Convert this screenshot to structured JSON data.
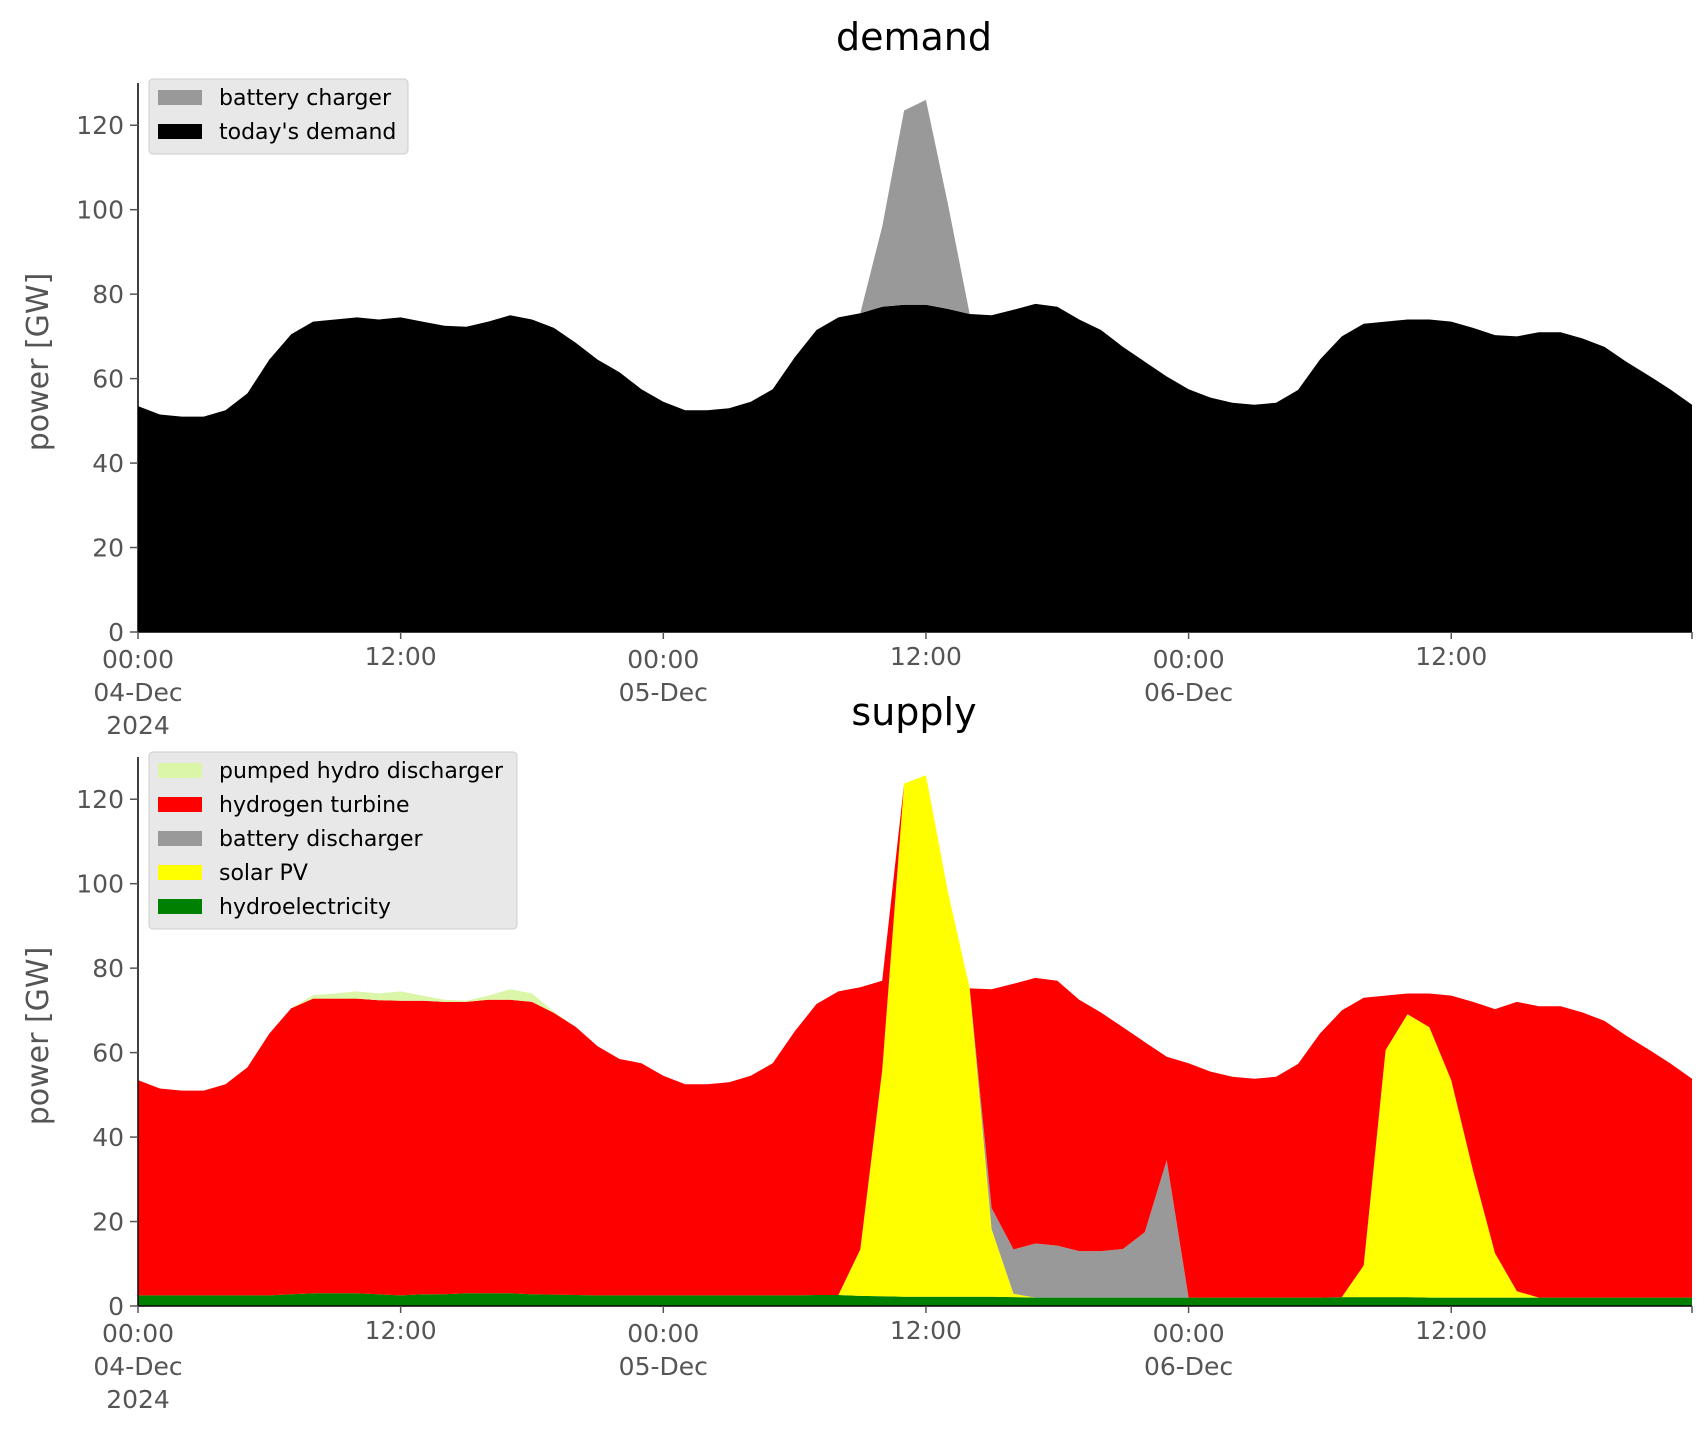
{
  "chart_data": [
    {
      "type": "area",
      "stacked": true,
      "title": "demand",
      "xlabel": "",
      "ylabel": "power [GW]",
      "ylim": [
        0,
        130
      ],
      "yticks": [
        0,
        20,
        40,
        60,
        80,
        100,
        120
      ],
      "grid": false,
      "legend_position": "top-left",
      "x_start": "2024-12-04 00:00",
      "x_end": "2024-12-06 23:00",
      "x_ticks": [
        {
          "x": "2024-12-04 00:00",
          "lines": [
            "00:00",
            "04-Dec",
            "2024"
          ]
        },
        {
          "x": "2024-12-04 12:00",
          "lines": [
            "12:00"
          ]
        },
        {
          "x": "2024-12-05 00:00",
          "lines": [
            "00:00",
            "05-Dec"
          ]
        },
        {
          "x": "2024-12-05 12:00",
          "lines": [
            "12:00"
          ]
        },
        {
          "x": "2024-12-06 00:00",
          "lines": [
            "00:00",
            "06-Dec"
          ]
        },
        {
          "x": "2024-12-06 12:00",
          "lines": [
            "12:00"
          ]
        },
        {
          "x": "2024-12-06 23:00",
          "lines": []
        }
      ],
      "x": [
        "2024-12-04 00:00",
        "2024-12-04 01:00",
        "2024-12-04 02:00",
        "2024-12-04 03:00",
        "2024-12-04 04:00",
        "2024-12-04 05:00",
        "2024-12-04 06:00",
        "2024-12-04 07:00",
        "2024-12-04 08:00",
        "2024-12-04 09:00",
        "2024-12-04 10:00",
        "2024-12-04 11:00",
        "2024-12-04 12:00",
        "2024-12-04 13:00",
        "2024-12-04 14:00",
        "2024-12-04 15:00",
        "2024-12-04 16:00",
        "2024-12-04 17:00",
        "2024-12-04 18:00",
        "2024-12-04 19:00",
        "2024-12-04 20:00",
        "2024-12-04 21:00",
        "2024-12-04 22:00",
        "2024-12-04 23:00",
        "2024-12-05 00:00",
        "2024-12-05 01:00",
        "2024-12-05 02:00",
        "2024-12-05 03:00",
        "2024-12-05 04:00",
        "2024-12-05 05:00",
        "2024-12-05 06:00",
        "2024-12-05 07:00",
        "2024-12-05 08:00",
        "2024-12-05 09:00",
        "2024-12-05 10:00",
        "2024-12-05 11:00",
        "2024-12-05 12:00",
        "2024-12-05 13:00",
        "2024-12-05 14:00",
        "2024-12-05 15:00",
        "2024-12-05 16:00",
        "2024-12-05 17:00",
        "2024-12-05 18:00",
        "2024-12-05 19:00",
        "2024-12-05 20:00",
        "2024-12-05 21:00",
        "2024-12-05 22:00",
        "2024-12-05 23:00",
        "2024-12-06 00:00",
        "2024-12-06 01:00",
        "2024-12-06 02:00",
        "2024-12-06 03:00",
        "2024-12-06 04:00",
        "2024-12-06 05:00",
        "2024-12-06 06:00",
        "2024-12-06 07:00",
        "2024-12-06 08:00",
        "2024-12-06 09:00",
        "2024-12-06 10:00",
        "2024-12-06 11:00",
        "2024-12-06 12:00",
        "2024-12-06 13:00",
        "2024-12-06 14:00",
        "2024-12-06 15:00",
        "2024-12-06 16:00",
        "2024-12-06 17:00",
        "2024-12-06 18:00",
        "2024-12-06 19:00",
        "2024-12-06 20:00",
        "2024-12-06 21:00",
        "2024-12-06 22:00",
        "2024-12-06 23:00"
      ],
      "series": [
        {
          "name": "today's demand",
          "color": "#000000",
          "values": [
            53.5,
            51.5,
            51,
            51,
            52.5,
            56.5,
            64.5,
            70.5,
            73.5,
            74,
            74.5,
            74,
            74.5,
            73.5,
            72.5,
            72.3,
            73.5,
            75,
            74,
            72,
            68.5,
            64.5,
            61.5,
            57.5,
            54.5,
            52.5,
            52.5,
            53,
            54.5,
            57.5,
            65,
            71.5,
            74.5,
            75.5,
            77,
            77.5,
            77.5,
            76.5,
            75.3,
            75,
            76.3,
            77.7,
            77,
            74,
            71.5,
            67.5,
            64,
            60.5,
            57.5,
            55.5,
            54.3,
            53.8,
            54.3,
            57.3,
            64.5,
            70,
            73,
            73.5,
            74,
            74,
            73.5,
            72,
            70.3,
            70,
            71,
            71,
            69.5,
            67.5,
            64,
            60.8,
            57.5,
            53.8
          ]
        },
        {
          "name": "battery charger",
          "color": "#999999",
          "values": [
            0,
            0,
            0,
            0,
            0,
            0,
            0,
            0,
            0,
            0,
            0,
            0,
            0,
            0,
            0,
            0,
            0,
            0,
            0,
            0,
            0,
            0,
            0,
            0,
            0,
            0,
            0,
            0,
            0,
            0,
            0,
            0,
            0,
            0,
            19,
            46,
            48.5,
            25,
            0,
            0,
            0,
            0,
            0,
            0,
            0,
            0,
            0,
            0,
            0,
            0,
            0,
            0,
            0,
            0,
            0,
            0,
            0,
            0,
            0,
            0,
            0,
            0,
            0,
            0,
            0,
            0,
            0,
            0,
            0,
            0,
            0,
            0
          ]
        }
      ]
    },
    {
      "type": "area",
      "stacked": true,
      "title": "supply",
      "xlabel": "",
      "ylabel": "power [GW]",
      "ylim": [
        0,
        130
      ],
      "yticks": [
        0,
        20,
        40,
        60,
        80,
        100,
        120
      ],
      "grid": false,
      "legend_position": "top-left",
      "x_start": "2024-12-04 00:00",
      "x_end": "2024-12-06 23:00",
      "x_ticks": [
        {
          "x": "2024-12-04 00:00",
          "lines": [
            "00:00",
            "04-Dec",
            "2024"
          ]
        },
        {
          "x": "2024-12-04 12:00",
          "lines": [
            "12:00"
          ]
        },
        {
          "x": "2024-12-05 00:00",
          "lines": [
            "00:00",
            "05-Dec"
          ]
        },
        {
          "x": "2024-12-05 12:00",
          "lines": [
            "12:00"
          ]
        },
        {
          "x": "2024-12-06 00:00",
          "lines": [
            "00:00",
            "06-Dec"
          ]
        },
        {
          "x": "2024-12-06 12:00",
          "lines": [
            "12:00"
          ]
        },
        {
          "x": "2024-12-06 23:00",
          "lines": []
        }
      ],
      "series": [
        {
          "name": "hydroelectricity",
          "color": "#008000",
          "values": [
            2.5,
            2.5,
            2.5,
            2.5,
            2.5,
            2.5,
            2.5,
            2.8,
            3,
            3,
            3,
            2.8,
            2.5,
            2.8,
            2.8,
            3,
            3,
            3,
            2.8,
            2.7,
            2.6,
            2.5,
            2.5,
            2.5,
            2.5,
            2.5,
            2.5,
            2.5,
            2.5,
            2.5,
            2.5,
            2.6,
            2.6,
            2.4,
            2.3,
            2.2,
            2.2,
            2.2,
            2.2,
            2.2,
            2.1,
            2,
            2,
            2,
            2,
            2,
            2,
            2,
            2,
            2,
            2,
            2,
            2,
            2,
            2,
            2.1,
            2.1,
            2.1,
            2.1,
            2,
            2,
            2,
            2,
            2,
            2,
            2,
            2,
            2,
            2,
            2,
            2,
            2
          ]
        },
        {
          "name": "solar PV",
          "color": "#ffff00",
          "values": [
            0,
            0,
            0,
            0,
            0,
            0,
            0,
            0,
            0,
            0,
            0,
            0,
            0,
            0,
            0,
            0,
            0,
            0,
            0,
            0,
            0,
            0,
            0,
            0,
            0,
            0,
            0,
            0,
            0,
            0,
            0,
            0,
            0,
            11,
            53.5,
            121.5,
            123.5,
            96,
            73,
            16,
            0.8,
            0,
            0,
            0,
            0,
            0,
            0,
            0,
            0,
            0,
            0,
            0,
            0,
            0,
            0,
            0,
            7.5,
            58.5,
            67,
            64,
            51.5,
            30,
            10.5,
            1.5,
            0,
            0,
            0,
            0,
            0,
            0,
            0,
            0
          ]
        },
        {
          "name": "battery discharger",
          "color": "#999999",
          "values": [
            0,
            0,
            0,
            0,
            0,
            0,
            0,
            0,
            0,
            0,
            0,
            0,
            0,
            0,
            0,
            0,
            0,
            0,
            0,
            0,
            0,
            0,
            0,
            0,
            0,
            0,
            0,
            0,
            0,
            0,
            0,
            0,
            0,
            0,
            0,
            0,
            0,
            0,
            0,
            5,
            10.5,
            12.8,
            12.3,
            11,
            11,
            11.5,
            15.5,
            32.5,
            0,
            0,
            0,
            0,
            0,
            0,
            0,
            0,
            0,
            0,
            0,
            0,
            0,
            0,
            0,
            0,
            0,
            0,
            0,
            0,
            0,
            0,
            0,
            0
          ]
        },
        {
          "name": "hydrogen turbine",
          "color": "#ff0000",
          "values": [
            51,
            49,
            48.5,
            48.5,
            50,
            54,
            62,
            67.7,
            69.8,
            69.8,
            69.8,
            69.6,
            69.8,
            69.5,
            69.2,
            69,
            69.5,
            69.5,
            69.2,
            66.7,
            63.5,
            59,
            56,
            55,
            52,
            50,
            50,
            50.5,
            52,
            55,
            62.5,
            68.9,
            71.9,
            62.1,
            21.2,
            0,
            0,
            0,
            0,
            51.8,
            62.9,
            62.9,
            62.7,
            59.5,
            56.5,
            52.5,
            45,
            24.5,
            55.5,
            53.5,
            52.3,
            51.8,
            52.3,
            55.3,
            62.5,
            67.9,
            63.4,
            12.9,
            4.9,
            8,
            20,
            40,
            57.8,
            68.5,
            69,
            69,
            67.5,
            65.5,
            62,
            58.8,
            55.5,
            51.8
          ]
        },
        {
          "name": "pumped hydro discharger",
          "color": "#dbf6a8",
          "values": [
            0,
            0,
            0,
            0,
            0,
            0,
            0,
            0,
            0.8,
            1.2,
            1.7,
            1.6,
            2.2,
            1.2,
            0.5,
            0.3,
            1,
            2.5,
            2,
            0.3,
            0,
            0,
            0,
            0,
            0,
            0,
            0,
            0,
            0,
            0,
            0,
            0,
            0,
            0,
            0,
            0,
            0,
            0,
            0,
            0,
            0,
            0,
            0,
            0,
            0,
            0,
            0,
            0,
            0,
            0,
            0,
            0,
            0,
            0,
            0,
            0,
            0,
            0,
            0,
            0,
            0,
            0,
            0,
            0,
            0,
            0,
            0,
            0,
            0,
            0,
            0,
            0
          ]
        }
      ]
    }
  ],
  "legends": [
    [
      {
        "label": "battery charger",
        "color": "#999999"
      },
      {
        "label": "today's demand",
        "color": "#000000"
      }
    ],
    [
      {
        "label": "pumped hydro discharger",
        "color": "#dbf6a8"
      },
      {
        "label": "hydrogen turbine",
        "color": "#ff0000"
      },
      {
        "label": "battery discharger",
        "color": "#999999"
      },
      {
        "label": "solar PV",
        "color": "#ffff00"
      },
      {
        "label": "hydroelectricity",
        "color": "#008000"
      }
    ]
  ]
}
